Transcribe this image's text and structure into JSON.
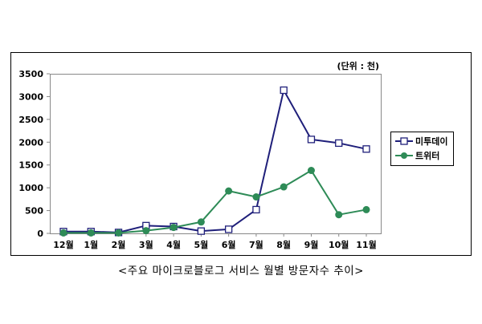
{
  "chart_data": {
    "type": "line",
    "unit_label": "(단위 : 천)",
    "categories": [
      "12월",
      "1월",
      "2월",
      "3월",
      "4월",
      "5월",
      "6월",
      "7월",
      "8월",
      "9월",
      "10월",
      "11월"
    ],
    "y_ticks": [
      "3500",
      "3000",
      "2500",
      "2000",
      "1500",
      "1000",
      "500",
      "0"
    ],
    "ylim": [
      0,
      3500
    ],
    "grid": false,
    "legend_position": "right",
    "series": [
      {
        "name": "미투데이",
        "color": "#1f1f7a",
        "marker": "square-hollow",
        "values": [
          40,
          40,
          20,
          170,
          150,
          50,
          90,
          520,
          3140,
          2060,
          1980,
          1850
        ]
      },
      {
        "name": "트위터",
        "color": "#2e8b57",
        "marker": "circle-filled",
        "values": [
          10,
          10,
          10,
          60,
          130,
          250,
          930,
          800,
          1020,
          1380,
          410,
          520
        ]
      }
    ],
    "caption": "<주요 마이크로블로그 서비스 월별 방문자수 추이>"
  }
}
